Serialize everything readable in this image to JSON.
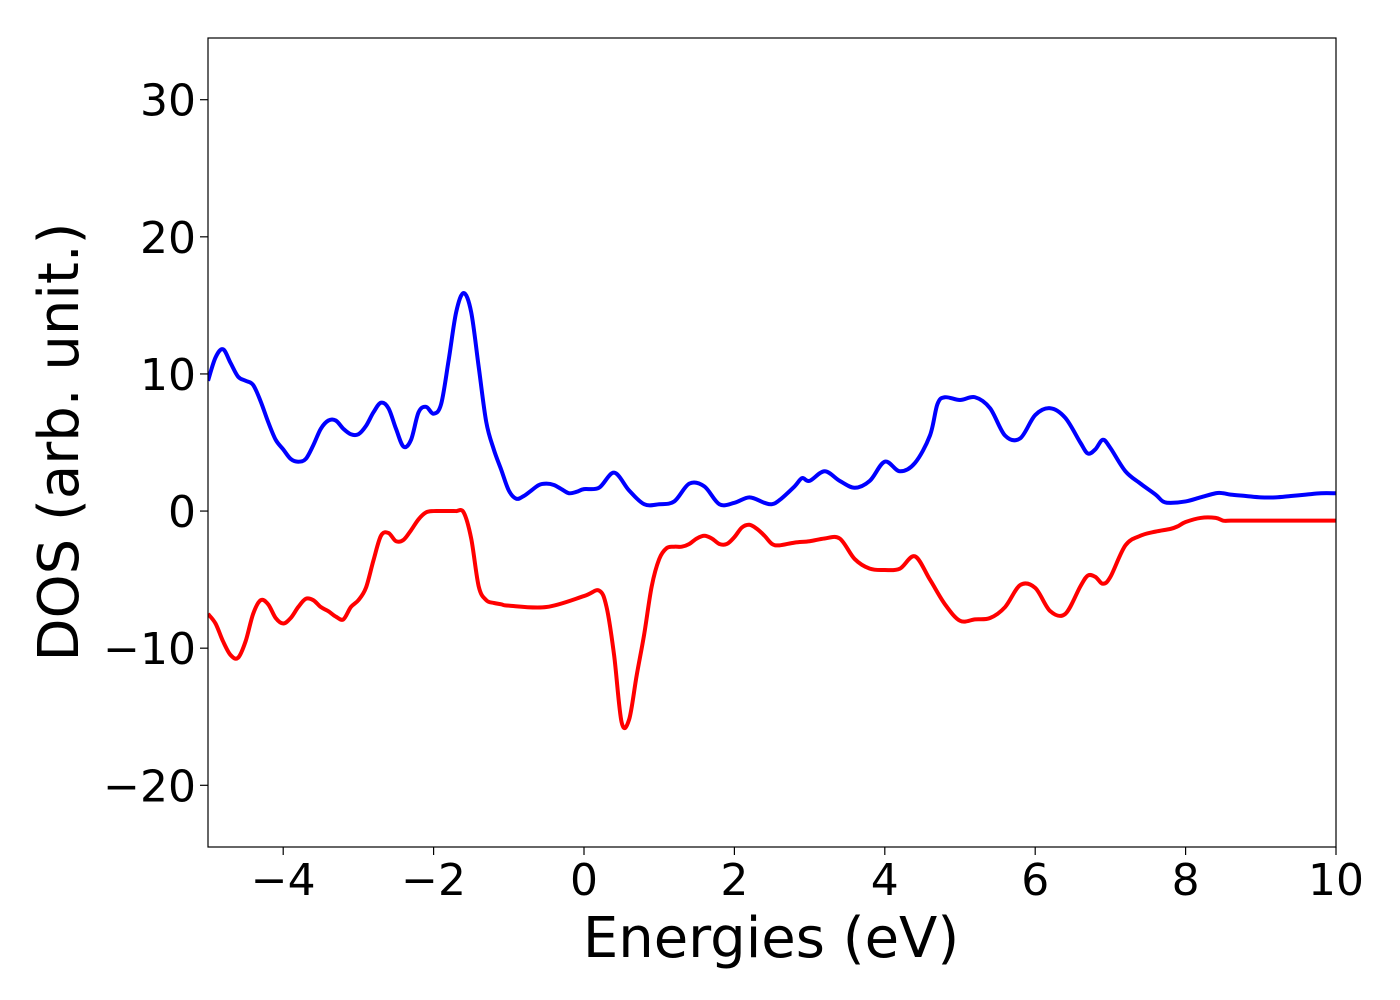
{
  "chart_data": {
    "type": "line",
    "title": "",
    "xlabel": "Energies (eV)",
    "ylabel": "DOS (arb. unit.)",
    "xlim": [
      -5,
      10
    ],
    "ylim": [
      -24.5,
      34.5
    ],
    "grid": false,
    "legend": "none",
    "x_ticks": [
      -4,
      -2,
      0,
      2,
      4,
      6,
      8,
      10
    ],
    "y_ticks": [
      -20,
      -10,
      0,
      10,
      20,
      30
    ],
    "x_tick_labels": [
      "−4",
      "−2",
      "0",
      "2",
      "4",
      "6",
      "8",
      "10"
    ],
    "y_tick_labels": [
      "−20",
      "−10",
      "0",
      "10",
      "20",
      "30"
    ],
    "series": [
      {
        "color": "#0000ff",
        "x": [
          -5.0,
          -4.9,
          -4.8,
          -4.7,
          -4.6,
          -4.5,
          -4.4,
          -4.3,
          -4.2,
          -4.1,
          -4.0,
          -3.9,
          -3.8,
          -3.7,
          -3.6,
          -3.5,
          -3.4,
          -3.3,
          -3.2,
          -3.1,
          -3.0,
          -2.9,
          -2.8,
          -2.7,
          -2.6,
          -2.5,
          -2.4,
          -2.3,
          -2.2,
          -2.1,
          -2.0,
          -1.9,
          -1.8,
          -1.7,
          -1.6,
          -1.5,
          -1.4,
          -1.3,
          -1.2,
          -1.1,
          -1.0,
          -0.9,
          -0.8,
          -0.7,
          -0.6,
          -0.5,
          -0.4,
          -0.3,
          -0.2,
          -0.1,
          0.0,
          0.2,
          0.4,
          0.6,
          0.8,
          1.0,
          1.2,
          1.4,
          1.6,
          1.8,
          2.0,
          2.2,
          2.4,
          2.5,
          2.6,
          2.8,
          2.9,
          3.0,
          3.2,
          3.4,
          3.6,
          3.8,
          4.0,
          4.2,
          4.4,
          4.6,
          4.7,
          4.8,
          5.0,
          5.2,
          5.4,
          5.6,
          5.8,
          6.0,
          6.2,
          6.4,
          6.6,
          6.7,
          6.8,
          6.9,
          7.0,
          7.2,
          7.4,
          7.6,
          7.7,
          7.8,
          8.0,
          8.2,
          8.4,
          8.5,
          8.6,
          8.8,
          9.0,
          9.2,
          9.4,
          9.6,
          9.8,
          10.0
        ],
        "y": [
          9.5,
          11.2,
          11.8,
          10.8,
          9.8,
          9.5,
          9.2,
          8.0,
          6.5,
          5.2,
          4.5,
          3.8,
          3.6,
          3.8,
          4.8,
          6.0,
          6.6,
          6.6,
          6.0,
          5.6,
          5.6,
          6.2,
          7.2,
          7.9,
          7.5,
          6.0,
          4.7,
          5.2,
          7.2,
          7.6,
          7.1,
          7.8,
          11.0,
          14.5,
          15.9,
          14.5,
          10.5,
          6.5,
          4.5,
          3.0,
          1.5,
          0.9,
          1.1,
          1.5,
          1.9,
          2.0,
          1.9,
          1.6,
          1.3,
          1.4,
          1.6,
          1.7,
          2.8,
          1.5,
          0.5,
          0.5,
          0.7,
          2.0,
          1.8,
          0.5,
          0.6,
          1.0,
          0.6,
          0.5,
          0.8,
          1.8,
          2.4,
          2.2,
          2.9,
          2.2,
          1.7,
          2.2,
          3.6,
          2.9,
          3.5,
          5.5,
          7.8,
          8.3,
          8.1,
          8.3,
          7.5,
          5.5,
          5.3,
          7.0,
          7.5,
          6.8,
          5.0,
          4.2,
          4.5,
          5.2,
          4.6,
          2.9,
          2.0,
          1.2,
          0.7,
          0.6,
          0.7,
          1.0,
          1.3,
          1.3,
          1.2,
          1.1,
          1.0,
          1.0,
          1.1,
          1.2,
          1.3,
          1.3
        ]
      },
      {
        "color": "#ff0000",
        "x": [
          -5.0,
          -4.9,
          -4.8,
          -4.7,
          -4.6,
          -4.5,
          -4.4,
          -4.3,
          -4.2,
          -4.1,
          -4.0,
          -3.9,
          -3.8,
          -3.7,
          -3.6,
          -3.5,
          -3.4,
          -3.3,
          -3.2,
          -3.1,
          -3.0,
          -2.9,
          -2.8,
          -2.7,
          -2.6,
          -2.5,
          -2.4,
          -2.3,
          -2.2,
          -2.1,
          -2.0,
          -1.9,
          -1.8,
          -1.7,
          -1.6,
          -1.5,
          -1.4,
          -1.3,
          -1.2,
          -1.1,
          -1.0,
          -0.5,
          0.0,
          0.2,
          0.3,
          0.4,
          0.5,
          0.6,
          0.7,
          0.8,
          0.9,
          1.0,
          1.1,
          1.2,
          1.3,
          1.4,
          1.5,
          1.6,
          1.7,
          1.8,
          1.9,
          2.0,
          2.1,
          2.2,
          2.3,
          2.4,
          2.5,
          2.6,
          2.8,
          3.0,
          3.2,
          3.4,
          3.6,
          3.8,
          4.0,
          4.2,
          4.4,
          4.6,
          4.8,
          5.0,
          5.2,
          5.4,
          5.6,
          5.8,
          6.0,
          6.2,
          6.4,
          6.6,
          6.7,
          6.8,
          6.9,
          7.0,
          7.2,
          7.4,
          7.6,
          7.8,
          7.9,
          8.0,
          8.2,
          8.4,
          8.5,
          8.6,
          8.8,
          9.0,
          9.2,
          9.4,
          9.6,
          9.8,
          10.0
        ],
        "y": [
          -7.5,
          -8.2,
          -9.5,
          -10.5,
          -10.7,
          -9.5,
          -7.5,
          -6.5,
          -6.8,
          -7.8,
          -8.2,
          -7.8,
          -7.0,
          -6.4,
          -6.5,
          -7.0,
          -7.3,
          -7.7,
          -7.9,
          -7.0,
          -6.5,
          -5.6,
          -3.6,
          -1.8,
          -1.6,
          -2.2,
          -2.1,
          -1.4,
          -0.6,
          -0.1,
          0.0,
          0.0,
          0.0,
          0.0,
          -0.1,
          -2.0,
          -5.5,
          -6.5,
          -6.7,
          -6.8,
          -6.9,
          -7.0,
          -6.2,
          -5.8,
          -7.0,
          -10.5,
          -15.4,
          -15.2,
          -12.0,
          -9.0,
          -5.5,
          -3.5,
          -2.7,
          -2.6,
          -2.6,
          -2.4,
          -2.0,
          -1.8,
          -2.0,
          -2.4,
          -2.4,
          -1.9,
          -1.2,
          -1.0,
          -1.3,
          -1.8,
          -2.4,
          -2.5,
          -2.3,
          -2.2,
          -2.0,
          -2.0,
          -3.5,
          -4.2,
          -4.3,
          -4.2,
          -3.3,
          -5.0,
          -6.8,
          -8.0,
          -7.9,
          -7.8,
          -7.0,
          -5.4,
          -5.6,
          -7.3,
          -7.5,
          -5.5,
          -4.7,
          -4.8,
          -5.3,
          -4.8,
          -2.5,
          -1.8,
          -1.5,
          -1.3,
          -1.1,
          -0.8,
          -0.5,
          -0.5,
          -0.7,
          -0.7,
          -0.7,
          -0.7,
          -0.7,
          -0.7,
          -0.7,
          -0.7,
          -0.7
        ]
      }
    ]
  }
}
